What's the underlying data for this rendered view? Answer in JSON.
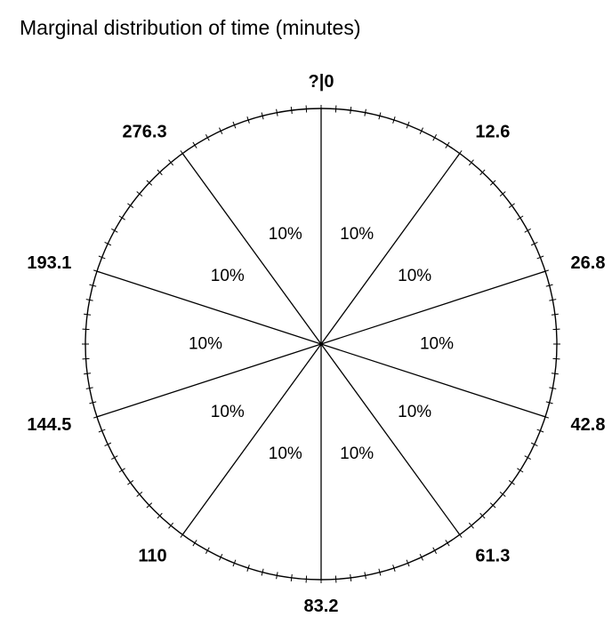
{
  "chart_data": {
    "type": "pie",
    "title": "Marginal distribution of time (minutes)",
    "boundary_labels": [
      "?|0",
      "12.6",
      "26.8",
      "42.8",
      "61.3",
      "83.2",
      "110",
      "144.5",
      "193.1",
      "276.3"
    ],
    "slices": [
      {
        "from": "0",
        "to": "12.6",
        "label": "10%",
        "value": 10
      },
      {
        "from": "12.6",
        "to": "26.8",
        "label": "10%",
        "value": 10
      },
      {
        "from": "26.8",
        "to": "42.8",
        "label": "10%",
        "value": 10
      },
      {
        "from": "42.8",
        "to": "61.3",
        "label": "10%",
        "value": 10
      },
      {
        "from": "61.3",
        "to": "83.2",
        "label": "10%",
        "value": 10
      },
      {
        "from": "83.2",
        "to": "110",
        "label": "10%",
        "value": 10
      },
      {
        "from": "110",
        "to": "144.5",
        "label": "10%",
        "value": 10
      },
      {
        "from": "144.5",
        "to": "193.1",
        "label": "10%",
        "value": 10
      },
      {
        "from": "193.1",
        "to": "276.3",
        "label": "10%",
        "value": 10
      },
      {
        "from": "276.3",
        "to": "?",
        "label": "10%",
        "value": 10
      }
    ],
    "tick_count": 100,
    "line_color": "#000000",
    "background": "#ffffff"
  }
}
